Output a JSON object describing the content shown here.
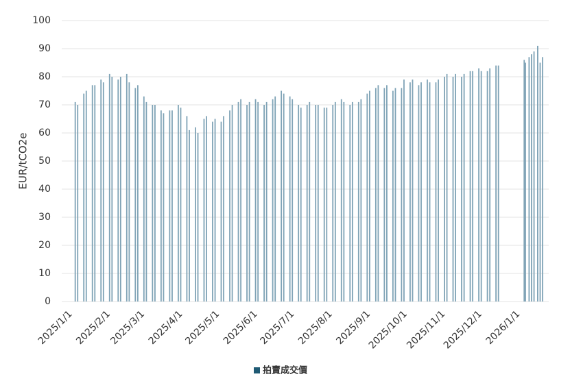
{
  "chart_data": {
    "type": "bar",
    "y_label": "EUR/tCO2e",
    "series": [
      {
        "name": "拍賣成交價",
        "color": "#7fa3b6",
        "legend_color": "#1f5a74",
        "x": [
          "2025/1/7",
          "2025/1/9",
          "2025/1/14",
          "2025/1/16",
          "2025/1/21",
          "2025/1/23",
          "2025/1/28",
          "2025/1/30",
          "2025/2/4",
          "2025/2/6",
          "2025/2/11",
          "2025/2/13",
          "2025/2/18",
          "2025/2/20",
          "2025/2/25",
          "2025/2/27",
          "2025/3/4",
          "2025/3/6",
          "2025/3/11",
          "2025/3/13",
          "2025/3/18",
          "2025/3/20",
          "2025/3/25",
          "2025/3/27",
          "2025/4/1",
          "2025/4/3",
          "2025/4/8",
          "2025/4/10",
          "2025/4/15",
          "2025/4/17",
          "2025/4/22",
          "2025/4/24",
          "2025/4/29",
          "2025/5/1",
          "2025/5/6",
          "2025/5/8",
          "2025/5/13",
          "2025/5/15",
          "2025/5/20",
          "2025/5/22",
          "2025/5/27",
          "2025/5/29",
          "2025/6/3",
          "2025/6/5",
          "2025/6/10",
          "2025/6/12",
          "2025/6/17",
          "2025/6/19",
          "2025/6/24",
          "2025/6/26",
          "2025/7/1",
          "2025/7/3",
          "2025/7/8",
          "2025/7/10",
          "2025/7/15",
          "2025/7/17",
          "2025/7/22",
          "2025/7/24",
          "2025/7/29",
          "2025/7/31",
          "2025/8/5",
          "2025/8/7",
          "2025/8/12",
          "2025/8/14",
          "2025/8/19",
          "2025/8/21",
          "2025/8/26",
          "2025/8/28",
          "2025/9/2",
          "2025/9/4",
          "2025/9/9",
          "2025/9/11",
          "2025/9/16",
          "2025/9/18",
          "2025/9/23",
          "2025/9/25",
          "2025/9/30",
          "2025/10/2",
          "2025/10/7",
          "2025/10/9",
          "2025/10/14",
          "2025/10/16",
          "2025/10/21",
          "2025/10/23",
          "2025/10/28",
          "2025/10/30",
          "2025/11/4",
          "2025/11/6",
          "2025/11/11",
          "2025/11/13",
          "2025/11/18",
          "2025/11/20",
          "2025/11/25",
          "2025/11/27",
          "2025/12/2",
          "2025/12/4",
          "2025/12/9",
          "2025/12/11",
          "2025/12/16",
          "2025/12/18",
          "2026/1/8",
          "2026/1/9",
          "2026/1/12",
          "2026/1/14",
          "2026/1/16",
          "2026/1/19",
          "2026/1/21",
          "2026/1/23"
        ],
        "values": [
          71,
          70,
          74,
          75,
          77,
          77,
          79,
          78,
          81,
          80,
          79,
          80,
          81,
          78,
          76,
          77,
          73,
          71,
          70,
          70,
          68,
          67,
          68,
          68,
          70,
          69,
          66,
          61,
          62,
          60,
          65,
          66,
          64,
          65,
          64,
          66,
          68,
          70,
          71,
          72,
          70,
          71,
          72,
          71,
          70,
          71,
          72,
          73,
          75,
          74,
          73,
          72,
          70,
          69,
          70,
          71,
          70,
          70,
          69,
          69,
          70,
          71,
          72,
          71,
          70,
          71,
          71,
          72,
          74,
          75,
          76,
          77,
          76,
          77,
          75,
          76,
          76,
          79,
          78,
          79,
          77,
          78,
          79,
          78,
          78,
          79,
          80,
          81,
          80,
          81,
          80,
          81,
          82,
          82,
          83,
          82,
          82,
          83,
          84,
          84,
          86,
          85,
          87,
          88,
          89,
          91,
          85,
          87
        ]
      }
    ],
    "xlim": [
      "2024/12/27",
      "2026/1/28"
    ],
    "xticks": [
      "2025/1/1",
      "2025/2/1",
      "2025/3/1",
      "2025/4/1",
      "2025/5/1",
      "2025/6/1",
      "2025/7/1",
      "2025/8/1",
      "2025/9/1",
      "2025/10/1",
      "2025/11/1",
      "2025/12/1",
      "2026/1/1"
    ],
    "ylim": [
      0,
      100
    ],
    "yticks": [
      0,
      10,
      20,
      30,
      40,
      50,
      60,
      70,
      80,
      90,
      100
    ],
    "grid": true
  }
}
